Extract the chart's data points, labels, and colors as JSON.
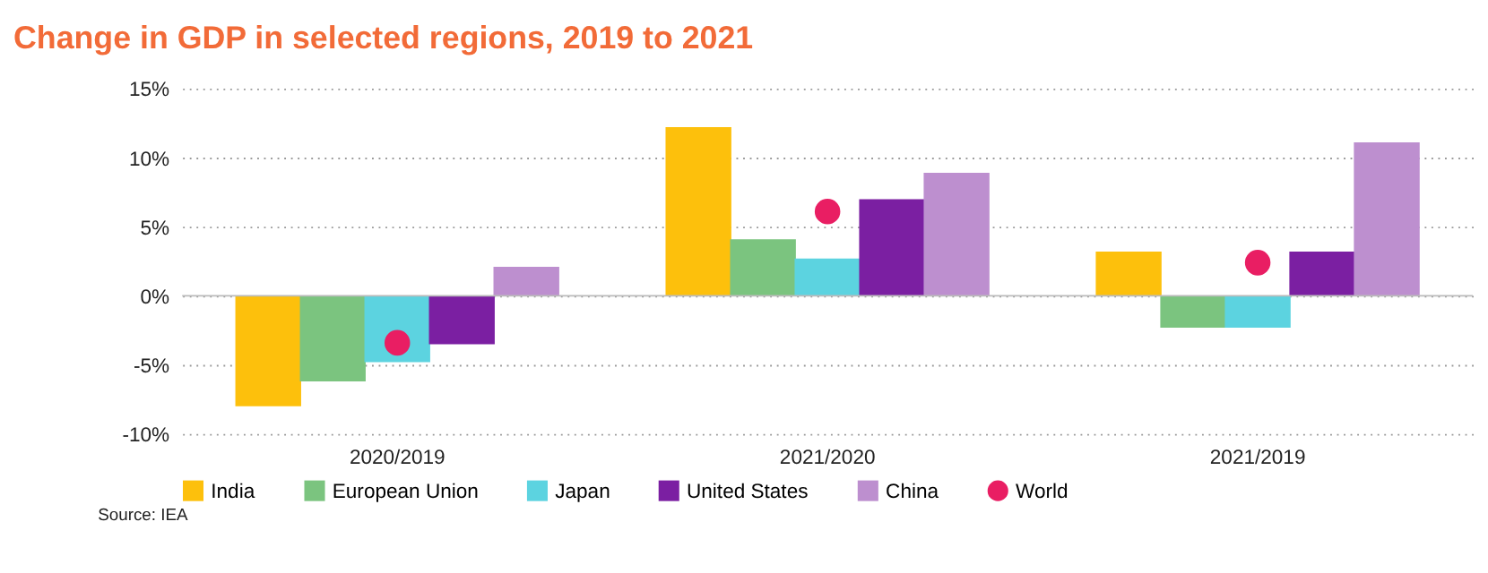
{
  "chart_data": {
    "type": "bar",
    "title": "Change in GDP in selected regions, 2019 to 2021",
    "categories": [
      "2020/2019",
      "2021/2020",
      "2021/2019"
    ],
    "series": [
      {
        "name": "India",
        "color": "#fdc00c",
        "values": [
          -8.0,
          12.2,
          3.2
        ]
      },
      {
        "name": "European Union",
        "color": "#7bc47f",
        "values": [
          -6.2,
          4.1,
          -2.3
        ]
      },
      {
        "name": "Japan",
        "color": "#5cd3e0",
        "values": [
          -4.8,
          2.7,
          -2.3
        ]
      },
      {
        "name": "United States",
        "color": "#7b1fa2",
        "values": [
          -3.5,
          7.0,
          3.2
        ]
      },
      {
        "name": "China",
        "color": "#bd8fcf",
        "values": [
          2.1,
          8.9,
          11.1
        ]
      },
      {
        "name": "World",
        "color": "#e91e63",
        "type": "scatter",
        "marker": "circle",
        "values": [
          -3.4,
          6.1,
          2.4
        ]
      }
    ],
    "ylim": [
      -10,
      15
    ],
    "yticks": [
      {
        "value": -10,
        "label": "-10%"
      },
      {
        "value": -5,
        "label": "-5%"
      },
      {
        "value": 0,
        "label": "0%"
      },
      {
        "value": 5,
        "label": "5%"
      },
      {
        "value": 10,
        "label": "10%"
      },
      {
        "value": 15,
        "label": "15%"
      }
    ],
    "grid": "y",
    "legend": "bottom",
    "annotations": [
      "Source: IEA"
    ]
  }
}
